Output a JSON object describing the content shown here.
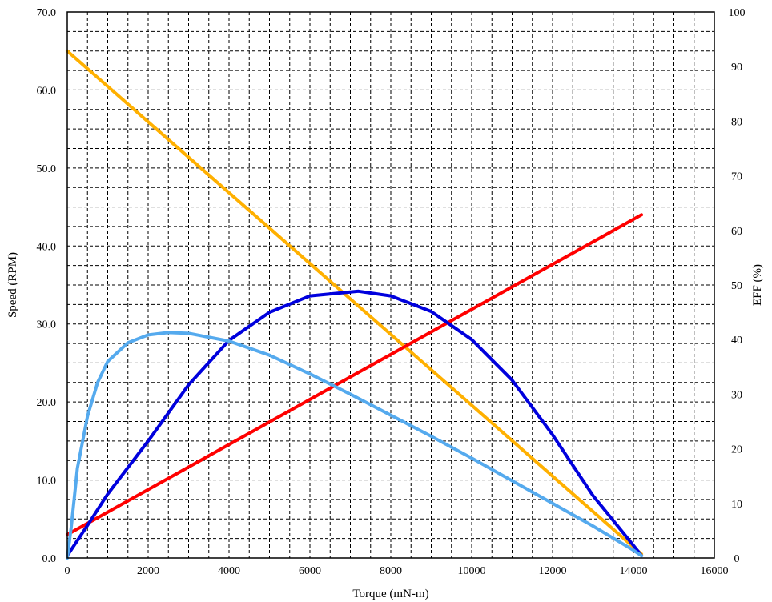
{
  "chart_data": {
    "type": "line",
    "title": "",
    "xlabel": "Torque (mN-m)",
    "ylabel_left": "Speed (RPM)",
    "ylabel_right": "EFF (%)",
    "xlim": [
      0,
      16000
    ],
    "ylim_left": [
      0,
      70
    ],
    "ylim_right": [
      0,
      100
    ],
    "x_ticks": [
      0,
      2000,
      4000,
      6000,
      8000,
      10000,
      12000,
      14000,
      16000
    ],
    "x_tick_labels": [
      "0",
      "2000",
      "4000",
      "6000",
      "8000",
      "10000",
      "12000",
      "14000",
      "16000"
    ],
    "y_left_ticks": [
      0,
      10,
      20,
      30,
      40,
      50,
      60,
      70
    ],
    "y_left_tick_labels": [
      "0.0",
      "10.0",
      "20.0",
      "30.0",
      "40.0",
      "50.0",
      "60.0",
      "70.0"
    ],
    "y_right_ticks": [
      0,
      10,
      20,
      30,
      40,
      50,
      60,
      70,
      80,
      90,
      100
    ],
    "y_right_tick_labels": [
      "0",
      "10",
      "20",
      "30",
      "40",
      "50",
      "60",
      "70",
      "80",
      "90",
      "100"
    ],
    "grid": true,
    "legend": "none",
    "series": [
      {
        "color": "#FFB000",
        "axis": "left",
        "x": [
          0,
          14200
        ],
        "y": [
          65.0,
          0.5
        ]
      },
      {
        "color": "#FF0000",
        "axis": "left",
        "x": [
          0,
          14200
        ],
        "y": [
          3.0,
          44.0
        ]
      },
      {
        "color": "#0000DD",
        "axis": "left",
        "x": [
          0,
          500,
          1000,
          2000,
          3000,
          4000,
          5000,
          6000,
          7000,
          7200,
          8000,
          9000,
          10000,
          11000,
          12000,
          13000,
          13500,
          14000,
          14200
        ],
        "y": [
          0.3,
          4.2,
          8.2,
          15.0,
          22.2,
          27.9,
          31.5,
          33.6,
          34.1,
          34.2,
          33.6,
          31.6,
          28.0,
          22.8,
          15.8,
          8.0,
          4.8,
          1.6,
          0.3
        ]
      },
      {
        "color": "#55AAEE",
        "axis": "left",
        "x": [
          0,
          100,
          250,
          500,
          750,
          1000,
          1500,
          2000,
          2500,
          3000,
          4000,
          5000,
          6000,
          7000,
          8000,
          9000,
          10000,
          11000,
          12000,
          13000,
          14000,
          14200
        ],
        "y": [
          0.0,
          4.0,
          11.5,
          18.2,
          22.5,
          25.2,
          27.6,
          28.6,
          28.9,
          28.8,
          27.8,
          26.0,
          23.6,
          21.0,
          18.3,
          15.6,
          12.8,
          9.9,
          7.0,
          4.1,
          1.0,
          0.3
        ]
      }
    ]
  }
}
